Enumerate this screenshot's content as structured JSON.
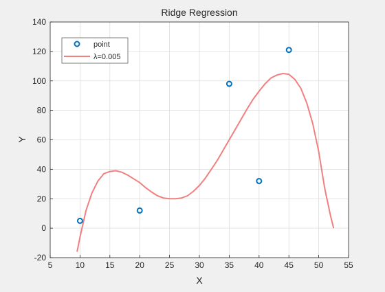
{
  "chart_data": {
    "type": "scatter",
    "title": "Ridge Regression",
    "xlabel": "X",
    "ylabel": "Y",
    "xlim": [
      5,
      55
    ],
    "ylim": [
      -20,
      140
    ],
    "xticks": [
      5,
      10,
      15,
      20,
      25,
      30,
      35,
      40,
      45,
      50,
      55
    ],
    "yticks": [
      -20,
      0,
      20,
      40,
      60,
      80,
      100,
      120,
      140
    ],
    "grid": true,
    "legend_position": "top-left",
    "series": [
      {
        "name": "point",
        "kind": "markers",
        "marker": "circle",
        "color": "#0072BD",
        "x": [
          10,
          20,
          35,
          40,
          45
        ],
        "y": [
          5,
          12,
          98,
          32,
          121
        ]
      },
      {
        "name": "λ=0.005",
        "kind": "line",
        "color": "#F08080",
        "x": [
          9.5,
          10,
          11,
          12,
          13,
          14,
          15,
          16,
          17,
          18,
          19,
          20,
          21,
          22,
          23,
          24,
          25,
          26,
          27,
          28,
          29,
          30,
          31,
          32,
          33,
          34,
          35,
          36,
          37,
          38,
          39,
          40,
          41,
          42,
          43,
          44,
          45,
          46,
          47,
          48,
          49,
          50,
          51,
          52,
          52.5
        ],
        "y": [
          -16,
          -6,
          12,
          24,
          32,
          37,
          38.5,
          39,
          38,
          36,
          33.5,
          31,
          27.5,
          24.5,
          22,
          20.5,
          20,
          20,
          20.5,
          22,
          25,
          29,
          34,
          40,
          46,
          53,
          60,
          67,
          74,
          81,
          87.5,
          93,
          98,
          102,
          104,
          105,
          104.5,
          101,
          95,
          85,
          71,
          52,
          27,
          8,
          0
        ]
      }
    ]
  }
}
